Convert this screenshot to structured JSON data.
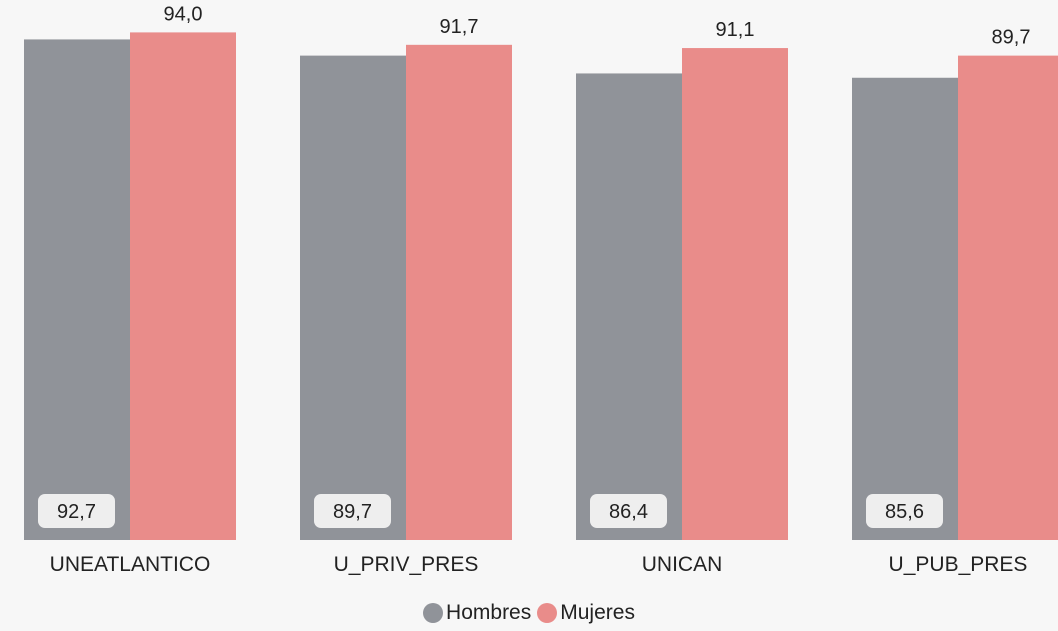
{
  "chart_data": {
    "type": "bar",
    "categories": [
      "UNEATLANTICO",
      "U_PRIV_PRES",
      "UNICAN",
      "U_PUB_PRES"
    ],
    "series": [
      {
        "name": "Hombres",
        "color": "#909399",
        "values": [
          92.7,
          89.7,
          86.4,
          85.6
        ],
        "labels": [
          "92,7",
          "89,7",
          "86,4",
          "85,6"
        ]
      },
      {
        "name": "Mujeres",
        "color": "#e98c8a",
        "values": [
          94.0,
          91.7,
          91.1,
          89.7
        ],
        "labels": [
          "94,0",
          "91,7",
          "91,1",
          "89,7"
        ]
      }
    ],
    "ylim": [
      0,
      100
    ],
    "grid": false,
    "legend_position": "bottom"
  }
}
